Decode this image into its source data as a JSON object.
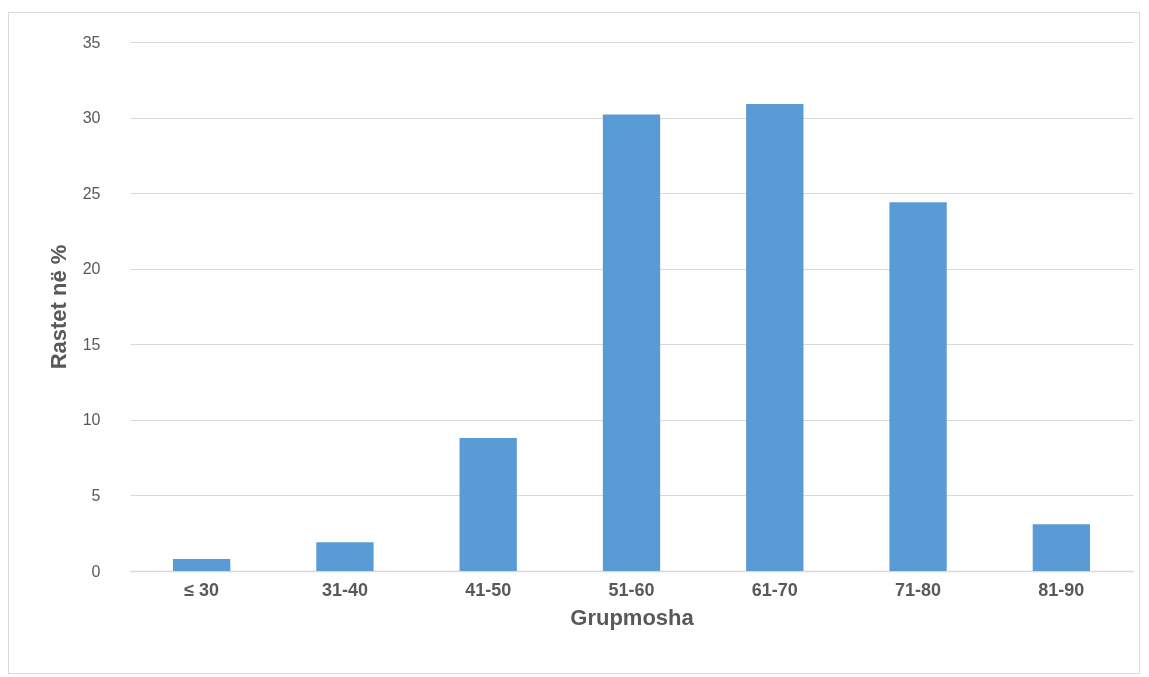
{
  "chart_data": {
    "type": "bar",
    "xlabel": "Grupmosha",
    "ylabel": "Rastet në %",
    "categories": [
      "≤ 30",
      "31-40",
      "41-50",
      "51-60",
      "61-70",
      "71-80",
      "81-90"
    ],
    "values": [
      0.8,
      1.9,
      8.8,
      30.2,
      30.9,
      24.4,
      3.1
    ],
    "color": "#5b9bd5",
    "ylim": [
      0,
      35
    ],
    "yticks": [
      0,
      5,
      10,
      15,
      20,
      25,
      30,
      35
    ],
    "grid": "y"
  }
}
